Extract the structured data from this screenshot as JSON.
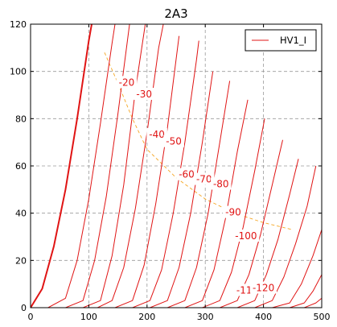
{
  "colors": {
    "curve": "#e01414",
    "load_line": "#f5a623",
    "grid": "#9a9a9a"
  },
  "chart_data": {
    "type": "line",
    "title": "2A3",
    "xlabel": "",
    "ylabel": "",
    "xlim": [
      0,
      500
    ],
    "ylim": [
      0,
      120
    ],
    "x_ticks": [
      0,
      100,
      200,
      300,
      400,
      500
    ],
    "y_ticks": [
      0,
      20,
      40,
      60,
      80,
      100,
      120
    ],
    "grid": true,
    "legend": {
      "position": "top-right",
      "entries": [
        "HV1_I"
      ]
    },
    "series_note": "plate current (mA, y) vs plate voltage (V, x) for grid bias values",
    "series": [
      {
        "name": "HV1_I",
        "label": "",
        "points": [
          [
            0,
            0
          ],
          [
            20,
            8
          ],
          [
            40,
            26
          ],
          [
            60,
            50
          ],
          [
            80,
            80
          ],
          [
            100,
            113
          ],
          [
            105,
            120
          ]
        ]
      },
      {
        "name": "HV1_I",
        "label": "",
        "points": [
          [
            30,
            0
          ],
          [
            60,
            4
          ],
          [
            80,
            20
          ],
          [
            100,
            46
          ],
          [
            120,
            78
          ],
          [
            140,
            112
          ],
          [
            145,
            120
          ]
        ]
      },
      {
        "name": "HV1_I",
        "label": "-20",
        "points": [
          [
            60,
            0
          ],
          [
            90,
            3
          ],
          [
            110,
            20
          ],
          [
            130,
            47
          ],
          [
            150,
            82
          ],
          [
            170,
            120
          ]
        ]
      },
      {
        "name": "HV1_I",
        "label": "-30",
        "points": [
          [
            90,
            0
          ],
          [
            120,
            3
          ],
          [
            140,
            22
          ],
          [
            160,
            52
          ],
          [
            180,
            92
          ],
          [
            197,
            120
          ]
        ]
      },
      {
        "name": "HV1_I",
        "label": "",
        "points": [
          [
            115,
            0
          ],
          [
            140,
            3
          ],
          [
            160,
            17
          ],
          [
            180,
            42
          ],
          [
            200,
            74
          ],
          [
            220,
            110
          ],
          [
            228,
            120
          ]
        ]
      },
      {
        "name": "HV1_I",
        "label": "-40",
        "points": [
          [
            145,
            0
          ],
          [
            175,
            3
          ],
          [
            195,
            18
          ],
          [
            215,
            44
          ],
          [
            235,
            76
          ],
          [
            255,
            115
          ]
        ]
      },
      {
        "name": "HV1_I",
        "label": "-50",
        "points": [
          [
            175,
            0
          ],
          [
            205,
            3
          ],
          [
            225,
            16
          ],
          [
            245,
            40
          ],
          [
            265,
            70
          ],
          [
            285,
            105
          ],
          [
            289,
            113
          ]
        ]
      },
      {
        "name": "HV1_I",
        "label": "-60",
        "points": [
          [
            205,
            0
          ],
          [
            235,
            3
          ],
          [
            255,
            17
          ],
          [
            275,
            40
          ],
          [
            295,
            70
          ],
          [
            313,
            100
          ]
        ]
      },
      {
        "name": "HV1_I",
        "label": "-70",
        "points": [
          [
            235,
            0
          ],
          [
            265,
            3
          ],
          [
            285,
            17
          ],
          [
            305,
            40
          ],
          [
            325,
            70
          ],
          [
            342,
            96
          ]
        ]
      },
      {
        "name": "HV1_I",
        "label": "-80",
        "points": [
          [
            265,
            0
          ],
          [
            295,
            3
          ],
          [
            315,
            16
          ],
          [
            335,
            38
          ],
          [
            355,
            66
          ],
          [
            373,
            88
          ]
        ]
      },
      {
        "name": "HV1_I",
        "label": "-90",
        "points": [
          [
            295,
            0
          ],
          [
            325,
            3
          ],
          [
            345,
            15
          ],
          [
            365,
            34
          ],
          [
            385,
            58
          ],
          [
            402,
            80
          ]
        ]
      },
      {
        "name": "HV1_I",
        "label": "-100",
        "points": [
          [
            325,
            0
          ],
          [
            355,
            3
          ],
          [
            375,
            14
          ],
          [
            395,
            31
          ],
          [
            415,
            52
          ],
          [
            433,
            71
          ]
        ]
      },
      {
        "name": "HV1_I",
        "label": "",
        "points": [
          [
            355,
            0
          ],
          [
            385,
            3
          ],
          [
            405,
            14
          ],
          [
            425,
            29
          ],
          [
            445,
            48
          ],
          [
            460,
            63
          ]
        ]
      },
      {
        "name": "HV1_I",
        "label": "",
        "points": [
          [
            385,
            0
          ],
          [
            415,
            3
          ],
          [
            435,
            13
          ],
          [
            455,
            27
          ],
          [
            475,
            43
          ],
          [
            490,
            60
          ]
        ]
      },
      {
        "name": "HV1_I",
        "label": "-11",
        "points": [
          [
            415,
            0
          ],
          [
            445,
            2
          ],
          [
            465,
            10
          ],
          [
            485,
            22
          ],
          [
            500,
            33
          ]
        ]
      },
      {
        "name": "HV1_I",
        "label": "-120",
        "points": [
          [
            445,
            0
          ],
          [
            470,
            2
          ],
          [
            485,
            7
          ],
          [
            500,
            14
          ]
        ]
      },
      {
        "name": "HV1_I",
        "label": "",
        "points": [
          [
            470,
            0
          ],
          [
            490,
            2
          ],
          [
            500,
            4
          ]
        ]
      }
    ],
    "load_line": {
      "style": "dashed",
      "points": [
        [
          127,
          108
        ],
        [
          150,
          95
        ],
        [
          175,
          80
        ],
        [
          200,
          67
        ],
        [
          250,
          55
        ],
        [
          300,
          46
        ],
        [
          350,
          40
        ],
        [
          400,
          36
        ],
        [
          450,
          33
        ]
      ]
    }
  }
}
